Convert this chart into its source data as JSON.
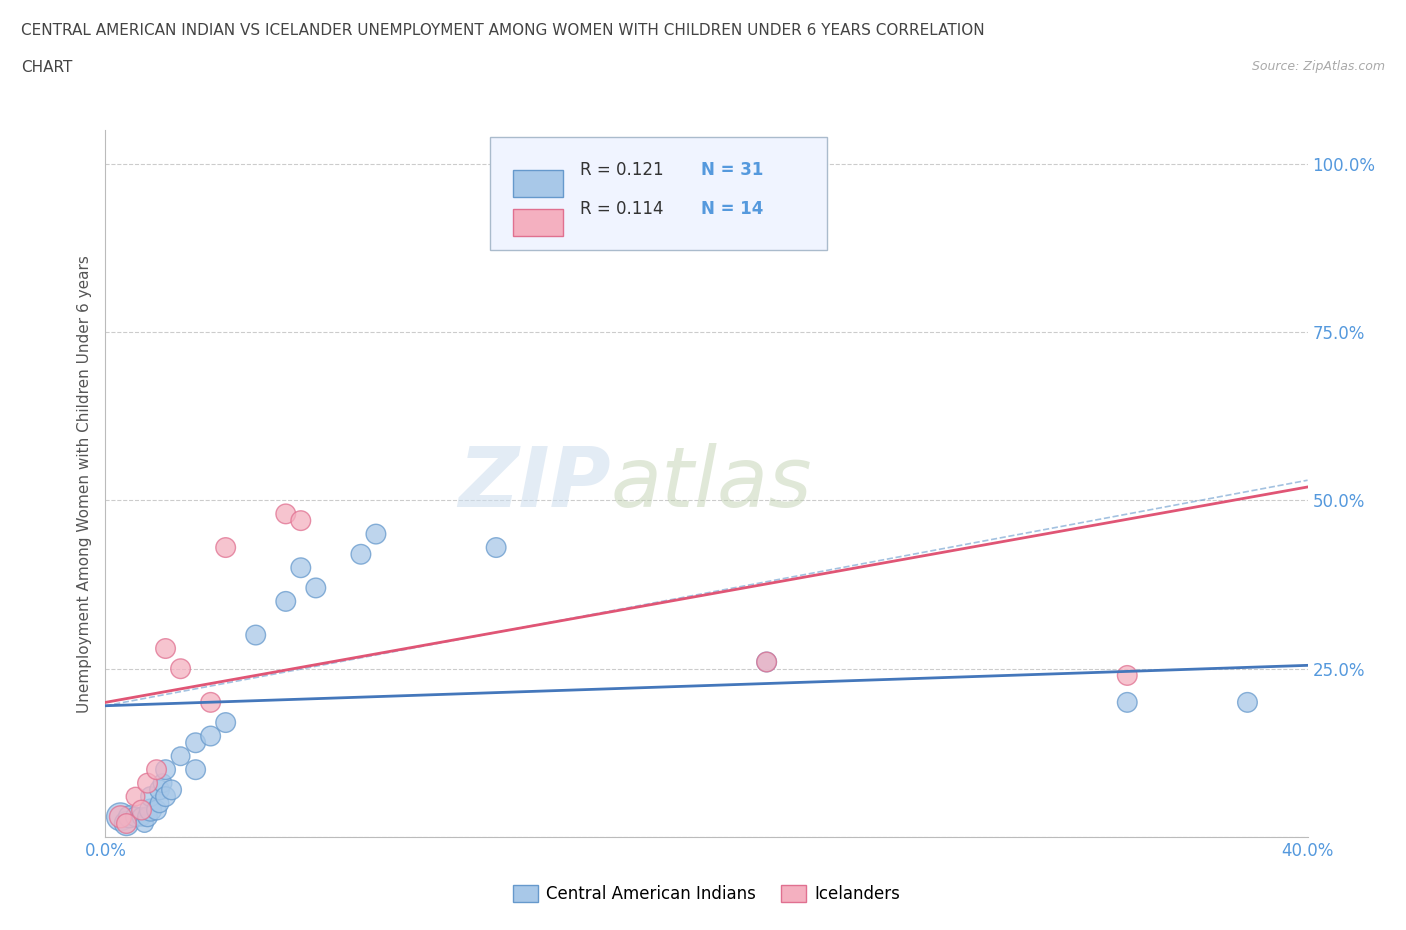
{
  "title_line1": "CENTRAL AMERICAN INDIAN VS ICELANDER UNEMPLOYMENT AMONG WOMEN WITH CHILDREN UNDER 6 YEARS CORRELATION",
  "title_line2": "CHART",
  "source": "Source: ZipAtlas.com",
  "ylabel": "Unemployment Among Women with Children Under 6 years",
  "xlim": [
    0.0,
    0.4
  ],
  "ylim": [
    0.0,
    1.05
  ],
  "ytick_positions": [
    0.0,
    0.25,
    0.5,
    0.75,
    1.0
  ],
  "ytick_labels": [
    "",
    "25.0%",
    "50.0%",
    "75.0%",
    "100.0%"
  ],
  "legend_blue_r": "0.121",
  "legend_blue_n": "31",
  "legend_pink_r": "0.114",
  "legend_pink_n": "14",
  "watermark_zip": "ZIP",
  "watermark_atlas": "atlas",
  "blue_color": "#a8c8e8",
  "pink_color": "#f4b0c0",
  "blue_edge_color": "#6699cc",
  "pink_edge_color": "#e07090",
  "blue_line_color": "#4477bb",
  "pink_line_color": "#e05575",
  "blue_scatter_x": [
    0.005,
    0.007,
    0.008,
    0.01,
    0.012,
    0.013,
    0.014,
    0.015,
    0.015,
    0.017,
    0.018,
    0.018,
    0.019,
    0.02,
    0.02,
    0.022,
    0.025,
    0.03,
    0.03,
    0.035,
    0.04,
    0.05,
    0.06,
    0.065,
    0.07,
    0.085,
    0.09,
    0.13,
    0.22,
    0.34,
    0.38
  ],
  "blue_scatter_y": [
    0.03,
    0.02,
    0.03,
    0.03,
    0.03,
    0.02,
    0.03,
    0.04,
    0.06,
    0.04,
    0.05,
    0.07,
    0.08,
    0.06,
    0.1,
    0.07,
    0.12,
    0.1,
    0.14,
    0.15,
    0.17,
    0.3,
    0.35,
    0.4,
    0.37,
    0.42,
    0.45,
    0.43,
    0.26,
    0.2,
    0.2
  ],
  "blue_scatter_size": [
    400,
    300,
    250,
    200,
    180,
    160,
    200,
    250,
    200,
    200,
    180,
    200,
    180,
    200,
    200,
    200,
    180,
    200,
    200,
    200,
    200,
    200,
    200,
    200,
    200,
    200,
    200,
    200,
    200,
    200,
    200
  ],
  "pink_scatter_x": [
    0.005,
    0.007,
    0.01,
    0.012,
    0.014,
    0.017,
    0.02,
    0.025,
    0.035,
    0.04,
    0.06,
    0.065,
    0.22,
    0.34
  ],
  "pink_scatter_y": [
    0.03,
    0.02,
    0.06,
    0.04,
    0.08,
    0.1,
    0.28,
    0.25,
    0.2,
    0.43,
    0.48,
    0.47,
    0.26,
    0.24
  ],
  "pink_scatter_size": [
    250,
    200,
    180,
    200,
    200,
    200,
    200,
    200,
    200,
    200,
    200,
    200,
    200,
    200
  ],
  "blue_trend_x": [
    0.0,
    0.4
  ],
  "blue_trend_y": [
    0.195,
    0.255
  ],
  "pink_trend_x": [
    0.0,
    0.4
  ],
  "pink_trend_y": [
    0.2,
    0.52
  ],
  "pink_trend_end_x": 0.4,
  "grid_color": "#cccccc",
  "grid_style": "--",
  "background_color": "#ffffff",
  "title_color": "#444444",
  "axis_label_color": "#555555",
  "tick_label_color": "#5599dd"
}
